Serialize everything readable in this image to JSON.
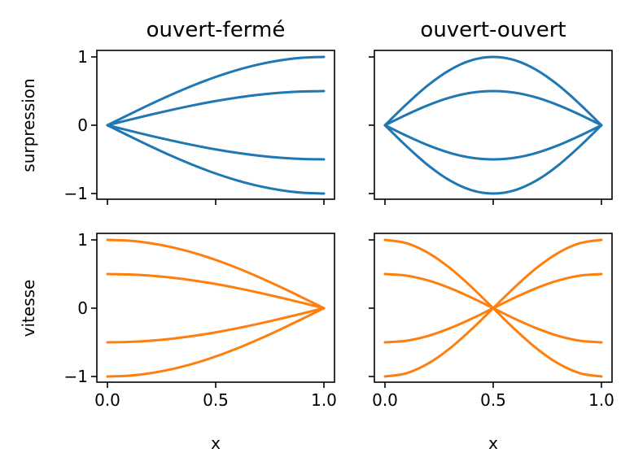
{
  "colors": {
    "pressure": "#1f77b4",
    "velocity": "#ff7f0e"
  },
  "chart_data": [
    {
      "type": "line",
      "title": "ouvert-fermé",
      "ylabel": "surpression",
      "xlabel": "",
      "xlim": [
        0,
        1
      ],
      "ylim": [
        -1,
        1
      ],
      "xticks": [
        0.0,
        0.5,
        1.0
      ],
      "yticks": [
        -1,
        0,
        1
      ],
      "xtick_labels": [
        "",
        "",
        ""
      ],
      "ytick_labels": [
        "−1",
        "0",
        "1"
      ],
      "series": [
        {
          "color": "#1f77b4",
          "x": [
            0,
            0.1,
            0.2,
            0.3,
            0.4,
            0.5,
            0.6,
            0.7,
            0.8,
            0.9,
            1.0
          ],
          "y": [
            0,
            0.156,
            0.309,
            0.454,
            0.588,
            0.707,
            0.809,
            0.891,
            0.951,
            0.988,
            1.0
          ]
        },
        {
          "color": "#1f77b4",
          "x": [
            0,
            0.1,
            0.2,
            0.3,
            0.4,
            0.5,
            0.6,
            0.7,
            0.8,
            0.9,
            1.0
          ],
          "y": [
            0,
            0.078,
            0.155,
            0.227,
            0.294,
            0.354,
            0.405,
            0.446,
            0.476,
            0.494,
            0.5
          ]
        },
        {
          "color": "#1f77b4",
          "x": [
            0,
            0.1,
            0.2,
            0.3,
            0.4,
            0.5,
            0.6,
            0.7,
            0.8,
            0.9,
            1.0
          ],
          "y": [
            0,
            -0.078,
            -0.155,
            -0.227,
            -0.294,
            -0.354,
            -0.405,
            -0.446,
            -0.476,
            -0.494,
            -0.5
          ]
        },
        {
          "color": "#1f77b4",
          "x": [
            0,
            0.1,
            0.2,
            0.3,
            0.4,
            0.5,
            0.6,
            0.7,
            0.8,
            0.9,
            1.0
          ],
          "y": [
            0,
            -0.156,
            -0.309,
            -0.454,
            -0.588,
            -0.707,
            -0.809,
            -0.891,
            -0.951,
            -0.988,
            -1.0
          ]
        }
      ]
    },
    {
      "type": "line",
      "title": "ouvert-ouvert",
      "ylabel": "",
      "xlabel": "",
      "xlim": [
        0,
        1
      ],
      "ylim": [
        -1,
        1
      ],
      "xticks": [
        0.0,
        0.5,
        1.0
      ],
      "yticks": [
        -1,
        0,
        1
      ],
      "xtick_labels": [
        "",
        "",
        ""
      ],
      "ytick_labels": [
        "",
        "",
        ""
      ],
      "series": [
        {
          "color": "#1f77b4",
          "x": [
            0,
            0.1,
            0.2,
            0.3,
            0.4,
            0.5,
            0.6,
            0.7,
            0.8,
            0.9,
            1.0
          ],
          "y": [
            0,
            0.309,
            0.588,
            0.809,
            0.951,
            1.0,
            0.951,
            0.809,
            0.588,
            0.309,
            0
          ]
        },
        {
          "color": "#1f77b4",
          "x": [
            0,
            0.1,
            0.2,
            0.3,
            0.4,
            0.5,
            0.6,
            0.7,
            0.8,
            0.9,
            1.0
          ],
          "y": [
            0,
            0.155,
            0.294,
            0.405,
            0.476,
            0.5,
            0.476,
            0.405,
            0.294,
            0.155,
            0
          ]
        },
        {
          "color": "#1f77b4",
          "x": [
            0,
            0.1,
            0.2,
            0.3,
            0.4,
            0.5,
            0.6,
            0.7,
            0.8,
            0.9,
            1.0
          ],
          "y": [
            0,
            -0.155,
            -0.294,
            -0.405,
            -0.476,
            -0.5,
            -0.476,
            -0.405,
            -0.294,
            -0.155,
            0
          ]
        },
        {
          "color": "#1f77b4",
          "x": [
            0,
            0.1,
            0.2,
            0.3,
            0.4,
            0.5,
            0.6,
            0.7,
            0.8,
            0.9,
            1.0
          ],
          "y": [
            0,
            -0.309,
            -0.588,
            -0.809,
            -0.951,
            -1.0,
            -0.951,
            -0.809,
            -0.588,
            -0.309,
            0
          ]
        }
      ]
    },
    {
      "type": "line",
      "title": "",
      "ylabel": "vitesse",
      "xlabel": "x",
      "xlim": [
        0,
        1
      ],
      "ylim": [
        -1,
        1
      ],
      "xticks": [
        0.0,
        0.5,
        1.0
      ],
      "yticks": [
        -1,
        0,
        1
      ],
      "xtick_labels": [
        "0.0",
        "0.5",
        "1.0"
      ],
      "ytick_labels": [
        "−1",
        "0",
        "1"
      ],
      "series": [
        {
          "color": "#ff7f0e",
          "x": [
            0,
            0.1,
            0.2,
            0.3,
            0.4,
            0.5,
            0.6,
            0.7,
            0.8,
            0.9,
            1.0
          ],
          "y": [
            1.0,
            0.988,
            0.951,
            0.891,
            0.809,
            0.707,
            0.588,
            0.454,
            0.309,
            0.156,
            0
          ]
        },
        {
          "color": "#ff7f0e",
          "x": [
            0,
            0.1,
            0.2,
            0.3,
            0.4,
            0.5,
            0.6,
            0.7,
            0.8,
            0.9,
            1.0
          ],
          "y": [
            0.5,
            0.494,
            0.476,
            0.446,
            0.405,
            0.354,
            0.294,
            0.227,
            0.155,
            0.078,
            0
          ]
        },
        {
          "color": "#ff7f0e",
          "x": [
            0,
            0.1,
            0.2,
            0.3,
            0.4,
            0.5,
            0.6,
            0.7,
            0.8,
            0.9,
            1.0
          ],
          "y": [
            -0.5,
            -0.494,
            -0.476,
            -0.446,
            -0.405,
            -0.354,
            -0.294,
            -0.227,
            -0.155,
            -0.078,
            0
          ]
        },
        {
          "color": "#ff7f0e",
          "x": [
            0,
            0.1,
            0.2,
            0.3,
            0.4,
            0.5,
            0.6,
            0.7,
            0.8,
            0.9,
            1.0
          ],
          "y": [
            -1.0,
            -0.988,
            -0.951,
            -0.891,
            -0.809,
            -0.707,
            -0.588,
            -0.454,
            -0.309,
            -0.156,
            0
          ]
        }
      ]
    },
    {
      "type": "line",
      "title": "",
      "ylabel": "",
      "xlabel": "x",
      "xlim": [
        0,
        1
      ],
      "ylim": [
        -1,
        1
      ],
      "xticks": [
        0.0,
        0.5,
        1.0
      ],
      "yticks": [
        -1,
        0,
        1
      ],
      "xtick_labels": [
        "0.0",
        "0.5",
        "1.0"
      ],
      "ytick_labels": [
        "",
        "",
        ""
      ],
      "series": [
        {
          "color": "#ff7f0e",
          "x": [
            0,
            0.1,
            0.2,
            0.3,
            0.4,
            0.5,
            0.6,
            0.7,
            0.8,
            0.9,
            1.0
          ],
          "y": [
            1.0,
            0.951,
            0.809,
            0.588,
            0.309,
            0,
            -0.309,
            -0.588,
            -0.809,
            -0.951,
            -1.0
          ]
        },
        {
          "color": "#ff7f0e",
          "x": [
            0,
            0.1,
            0.2,
            0.3,
            0.4,
            0.5,
            0.6,
            0.7,
            0.8,
            0.9,
            1.0
          ],
          "y": [
            0.5,
            0.476,
            0.405,
            0.294,
            0.155,
            0,
            -0.155,
            -0.294,
            -0.405,
            -0.476,
            -0.5
          ]
        },
        {
          "color": "#ff7f0e",
          "x": [
            0,
            0.1,
            0.2,
            0.3,
            0.4,
            0.5,
            0.6,
            0.7,
            0.8,
            0.9,
            1.0
          ],
          "y": [
            -0.5,
            -0.476,
            -0.405,
            -0.294,
            -0.155,
            0,
            0.155,
            0.294,
            0.405,
            0.476,
            0.5
          ]
        },
        {
          "color": "#ff7f0e",
          "x": [
            0,
            0.1,
            0.2,
            0.3,
            0.4,
            0.5,
            0.6,
            0.7,
            0.8,
            0.9,
            1.0
          ],
          "y": [
            -1.0,
            -0.951,
            -0.809,
            -0.588,
            -0.309,
            0,
            0.309,
            0.588,
            0.809,
            0.951,
            1.0
          ]
        }
      ]
    }
  ]
}
